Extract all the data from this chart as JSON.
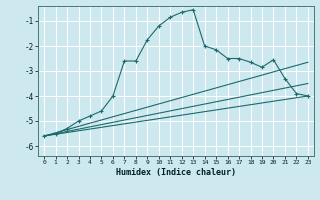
{
  "xlabel": "Humidex (Indice chaleur)",
  "ylabel": "",
  "bg_color": "#cde8ef",
  "grid_color": "#ffffff",
  "line_color": "#1a6b6b",
  "xlim": [
    -0.5,
    23.5
  ],
  "ylim": [
    -6.4,
    -0.4
  ],
  "xticks": [
    0,
    1,
    2,
    3,
    4,
    5,
    6,
    7,
    8,
    9,
    10,
    11,
    12,
    13,
    14,
    15,
    16,
    17,
    18,
    19,
    20,
    21,
    22,
    23
  ],
  "yticks": [
    -6,
    -5,
    -4,
    -3,
    -2,
    -1
  ],
  "line1_x": [
    0,
    1,
    2,
    3,
    4,
    5,
    6,
    7,
    8,
    9,
    10,
    11,
    12,
    13,
    14,
    15,
    16,
    17,
    18,
    19,
    20,
    21,
    22,
    23
  ],
  "line1_y": [
    -5.6,
    -5.5,
    -5.3,
    -5.0,
    -4.8,
    -4.6,
    -4.0,
    -2.6,
    -2.6,
    -1.75,
    -1.2,
    -0.85,
    -0.65,
    -0.55,
    -2.0,
    -2.15,
    -2.5,
    -2.5,
    -2.65,
    -2.85,
    -2.55,
    -3.3,
    -3.9,
    -4.0
  ],
  "line2_x": [
    0,
    23
  ],
  "line2_y": [
    -5.6,
    -2.65
  ],
  "line3_x": [
    0,
    23
  ],
  "line3_y": [
    -5.6,
    -3.5
  ],
  "line4_x": [
    0,
    23
  ],
  "line4_y": [
    -5.6,
    -4.0
  ],
  "markersize": 2.5
}
